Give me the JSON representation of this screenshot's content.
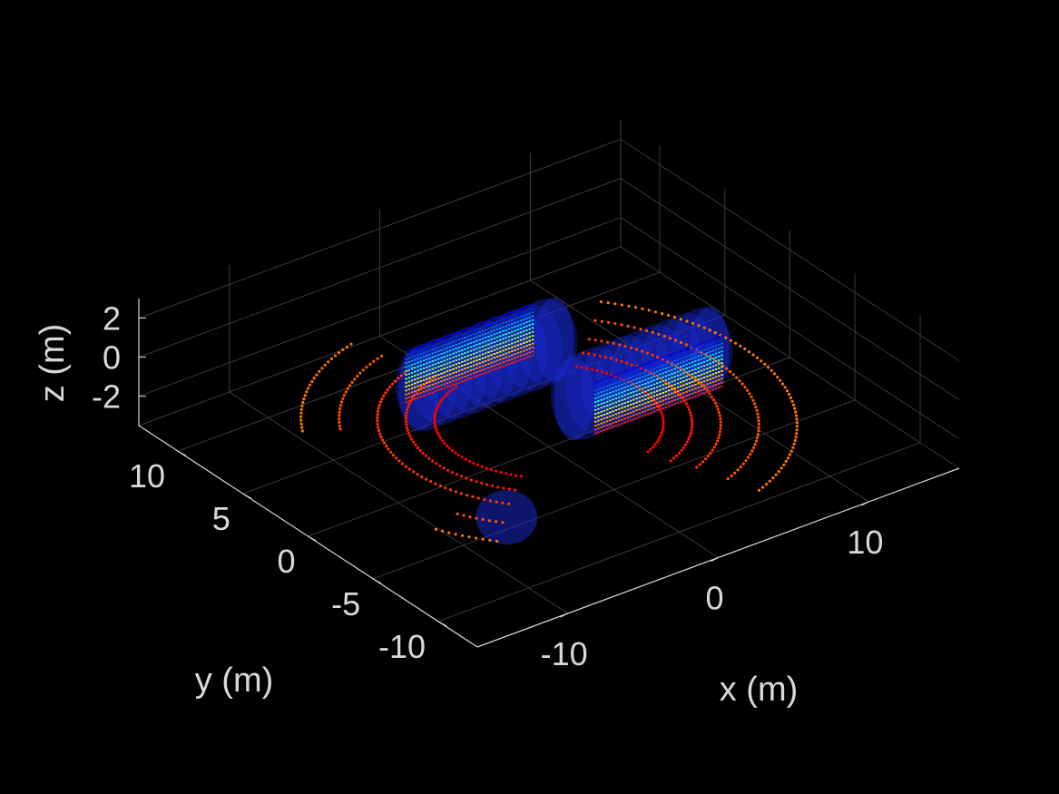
{
  "chart_data": {
    "type": "scatter",
    "view": "3d",
    "background": "#000000",
    "axis_color": "#d9d9d9",
    "grid_color": "#3a3a3a",
    "grid": true,
    "xlabel": "x (m)",
    "ylabel": "y (m)",
    "zlabel": "z (m)",
    "xlim": [
      -16,
      16
    ],
    "ylim": [
      -13,
      13
    ],
    "zlim": [
      -3.5,
      3
    ],
    "x_ticks": [
      -10,
      0,
      10
    ],
    "x_tick_labels": [
      "-10",
      "0",
      "10"
    ],
    "y_ticks": [
      -10,
      -5,
      0,
      5,
      10
    ],
    "y_tick_labels": [
      "-10",
      "-5",
      "0",
      "5",
      "10"
    ],
    "z_ticks": [
      -2,
      0,
      2
    ],
    "z_tick_labels": [
      "-2",
      "0",
      "2"
    ],
    "colormap": "jet, by height (z)",
    "objects": [
      {
        "kind": "vehicle",
        "center": [
          -2.0,
          2.5,
          0.2
        ],
        "length": 9.0,
        "width": 2.6,
        "height": 2.6
      },
      {
        "kind": "vehicle",
        "center": [
          4.0,
          -2.5,
          0.2
        ],
        "length": 9.0,
        "width": 2.6,
        "height": 2.6
      }
    ],
    "ground_rings_radii": [
      6.0,
      7.5,
      9.0,
      11.0,
      13.0
    ],
    "colors": {
      "hull": "#1a2bd6",
      "low": "#ff2a10",
      "mid": "#30d0ff",
      "high": "#1030ff"
    }
  }
}
